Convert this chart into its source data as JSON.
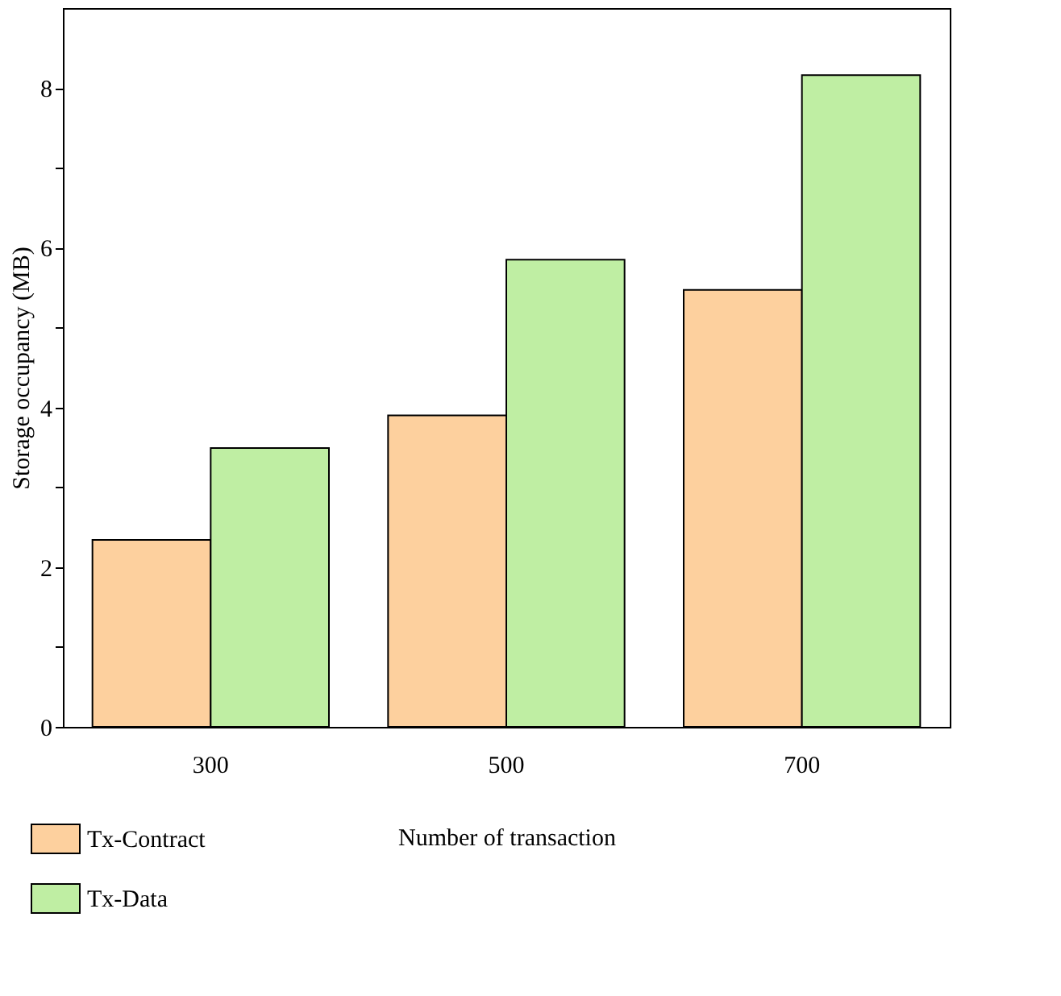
{
  "chart_data": {
    "type": "bar",
    "xlabel": "Number of transaction",
    "ylabel": "Storage occupancy (MB)",
    "categories": [
      "300",
      "500",
      "700"
    ],
    "series": [
      {
        "name": "Tx-Contract",
        "color": "#fdd09e",
        "values": [
          2.34,
          3.9,
          5.47
        ]
      },
      {
        "name": "Tx-Data",
        "color": "#bfeea3",
        "values": [
          3.49,
          5.85,
          8.16
        ]
      }
    ],
    "ylim": [
      0,
      9
    ],
    "yticks": [
      0,
      {
        "value": 1,
        "label": null
      },
      2,
      {
        "value": 3,
        "label": null
      },
      4,
      {
        "value": 5,
        "label": null
      },
      6,
      {
        "value": 7,
        "label": null
      },
      8
    ],
    "grid": false,
    "legend": "bottom left"
  }
}
